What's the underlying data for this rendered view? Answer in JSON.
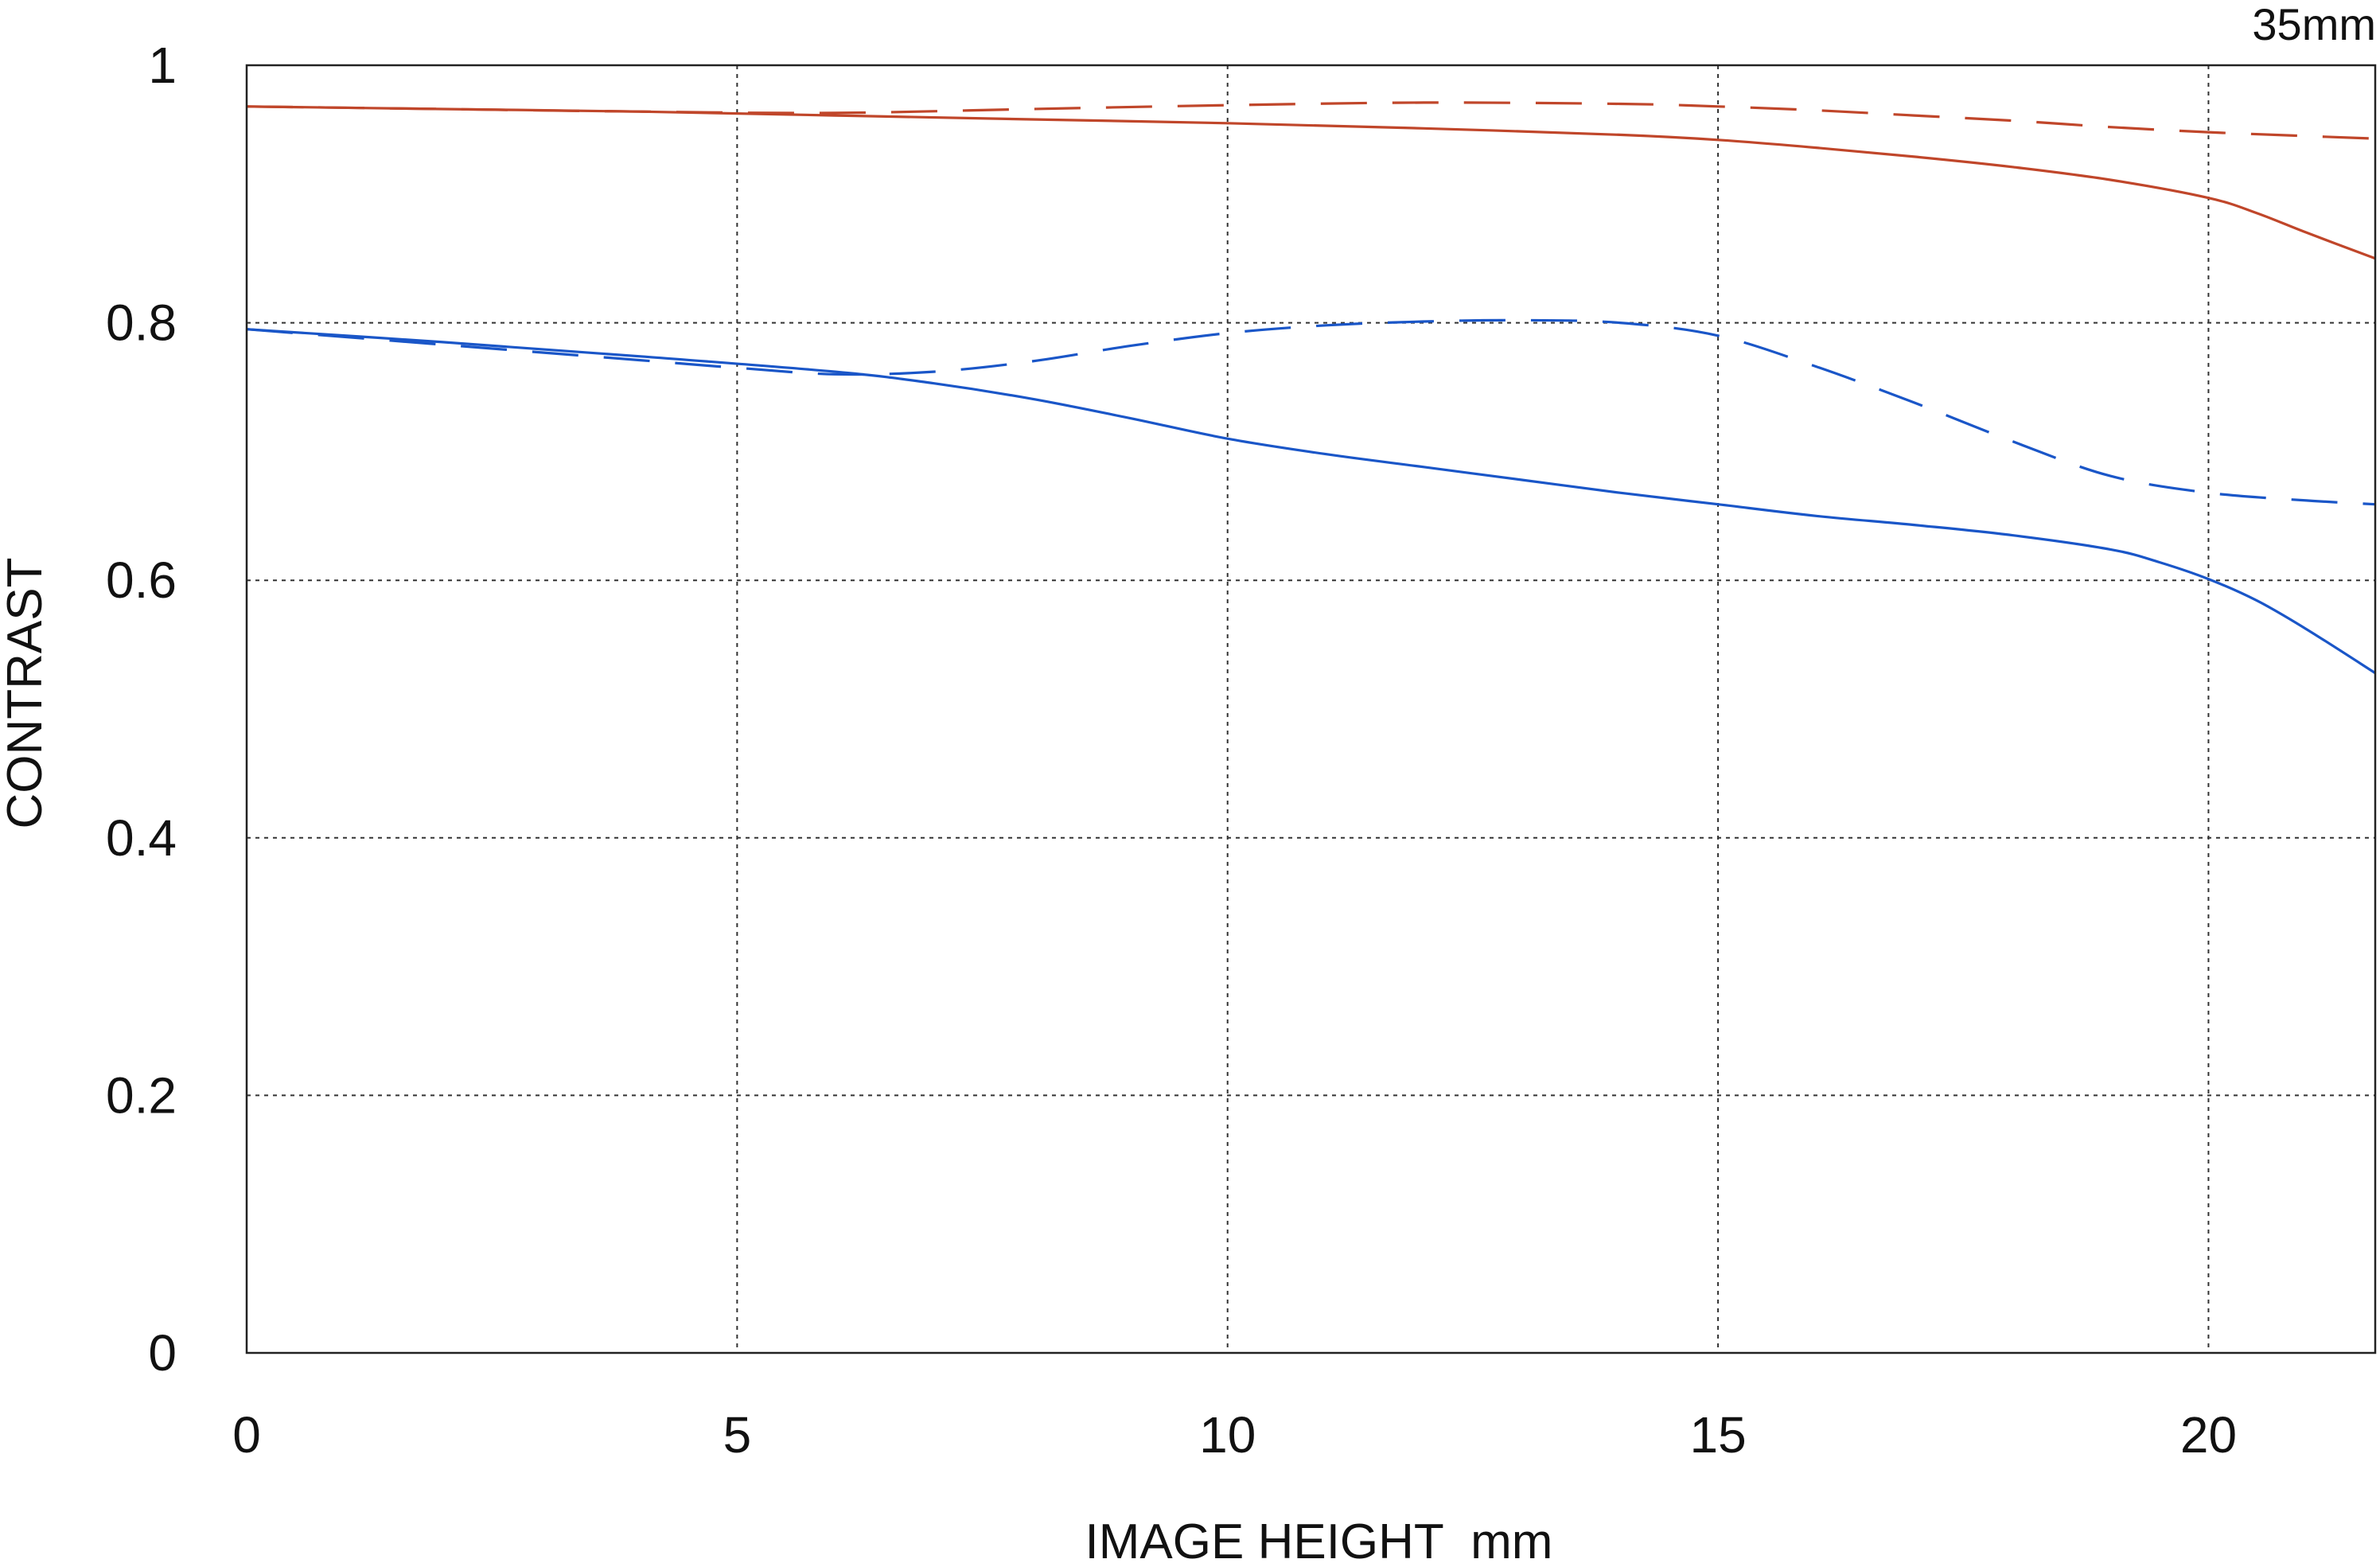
{
  "chart_data": {
    "type": "line",
    "title": "35mm",
    "xlabel": "IMAGE HEIGHT  mm",
    "ylabel": "CONTRAST",
    "xlim": [
      0,
      21.7
    ],
    "ylim": [
      0,
      1
    ],
    "grid": true,
    "x_ticks": [
      {
        "value": 0,
        "label": "0"
      },
      {
        "value": 5,
        "label": "5"
      },
      {
        "value": 10,
        "label": "10"
      },
      {
        "value": 15,
        "label": "15"
      },
      {
        "value": 20,
        "label": "20"
      }
    ],
    "y_ticks": [
      {
        "value": 0,
        "label": "0"
      },
      {
        "value": 0.2,
        "label": "0.2"
      },
      {
        "value": 0.4,
        "label": "0.4"
      },
      {
        "value": 0.6,
        "label": "0.6"
      },
      {
        "value": 0.8,
        "label": "0.8"
      },
      {
        "value": 1,
        "label": "1"
      }
    ],
    "series": [
      {
        "color": "#c0462a",
        "style": "solid",
        "x": [
          0,
          2,
          4,
          6,
          8,
          10,
          12,
          14,
          15,
          16,
          17,
          18,
          19,
          20,
          20.5,
          21,
          21.7
        ],
        "y": [
          0.968,
          0.966,
          0.964,
          0.961,
          0.958,
          0.955,
          0.951,
          0.946,
          0.942,
          0.936,
          0.929,
          0.921,
          0.911,
          0.897,
          0.885,
          0.87,
          0.85
        ]
      },
      {
        "color": "#c0462a",
        "style": "dashed",
        "x": [
          0,
          2,
          4,
          6,
          8,
          10,
          12,
          14,
          15,
          16,
          17,
          18,
          19,
          20,
          21,
          21.7
        ],
        "y": [
          0.968,
          0.966,
          0.964,
          0.963,
          0.966,
          0.969,
          0.971,
          0.97,
          0.968,
          0.965,
          0.961,
          0.957,
          0.952,
          0.948,
          0.945,
          0.943
        ]
      },
      {
        "color": "#1a56c8",
        "style": "solid",
        "x": [
          0,
          2,
          4,
          6,
          7,
          8,
          9,
          10,
          11,
          12,
          13,
          14,
          15,
          16,
          17,
          18,
          19,
          19.5,
          20,
          20.5,
          21,
          21.7
        ],
        "y": [
          0.795,
          0.785,
          0.774,
          0.762,
          0.753,
          0.741,
          0.726,
          0.71,
          0.698,
          0.688,
          0.678,
          0.668,
          0.659,
          0.65,
          0.643,
          0.635,
          0.624,
          0.614,
          0.601,
          0.584,
          0.562,
          0.528
        ]
      },
      {
        "color": "#1a56c8",
        "style": "dashed",
        "x": [
          0,
          2,
          4,
          5,
          6,
          7,
          8,
          9,
          10,
          11,
          12,
          13,
          14,
          15,
          16,
          17,
          18,
          19,
          20,
          21,
          21.7
        ],
        "y": [
          0.795,
          0.783,
          0.771,
          0.765,
          0.76,
          0.762,
          0.77,
          0.782,
          0.792,
          0.798,
          0.801,
          0.802,
          0.8,
          0.79,
          0.766,
          0.738,
          0.708,
          0.681,
          0.668,
          0.662,
          0.659
        ]
      }
    ]
  }
}
